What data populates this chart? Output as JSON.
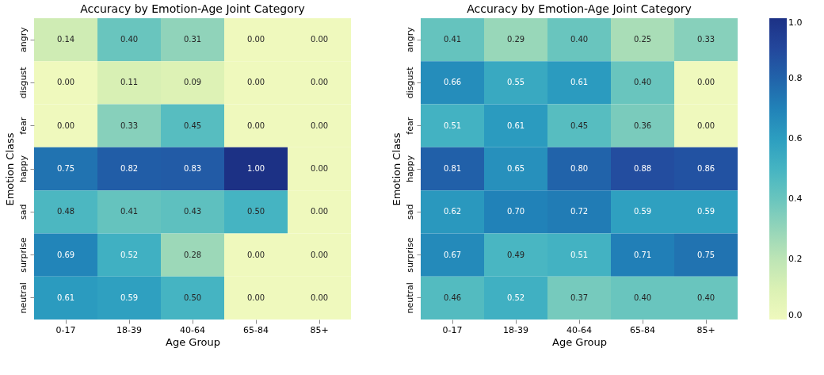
{
  "chart_data": [
    {
      "type": "heatmap",
      "title": "Accuracy by Emotion-Age Joint Category",
      "xlabel": "Age Group",
      "ylabel": "Emotion Class",
      "data_labels": true,
      "categories": [
        "0-17",
        "18-39",
        "40-64",
        "65-84",
        "85+"
      ],
      "y_categories": [
        "angry",
        "disgust",
        "fear",
        "happy",
        "sad",
        "surprise",
        "neutral"
      ],
      "cells": [
        [
          0.14,
          0.4,
          0.31,
          0.0,
          0.0
        ],
        [
          0.0,
          0.11,
          0.09,
          0.0,
          0.0
        ],
        [
          0.0,
          0.33,
          0.45,
          0.0,
          0.0
        ],
        [
          0.75,
          0.82,
          0.83,
          1.0,
          0.0
        ],
        [
          0.48,
          0.41,
          0.43,
          0.5,
          0.0
        ],
        [
          0.69,
          0.52,
          0.28,
          0.0,
          0.0
        ],
        [
          0.61,
          0.59,
          0.5,
          0.0,
          0.0
        ]
      ],
      "cell_labels": [
        [
          "0.14",
          "0.40",
          "0.31",
          "0.00",
          "0.00"
        ],
        [
          "0.00",
          "0.11",
          "0.09",
          "0.00",
          "0.00"
        ],
        [
          "0.00",
          "0.33",
          "0.45",
          "0.00",
          "0.00"
        ],
        [
          "0.75",
          "0.82",
          "0.83",
          "1.00",
          "0.00"
        ],
        [
          "0.48",
          "0.41",
          "0.43",
          "0.50",
          "0.00"
        ],
        [
          "0.69",
          "0.52",
          "0.28",
          "0.00",
          "0.00"
        ],
        [
          "0.61",
          "0.59",
          "0.50",
          "0.00",
          "0.00"
        ]
      ]
    },
    {
      "type": "heatmap",
      "title": "Accuracy by Emotion-Age Joint Category",
      "xlabel": "Age Group",
      "ylabel": "Emotion Class",
      "data_labels": true,
      "categories": [
        "0-17",
        "18-39",
        "40-64",
        "65-84",
        "85+"
      ],
      "y_categories": [
        "angry",
        "disgust",
        "fear",
        "happy",
        "sad",
        "surprise",
        "neutral"
      ],
      "cells": [
        [
          0.41,
          0.29,
          0.4,
          0.25,
          0.33
        ],
        [
          0.66,
          0.55,
          0.61,
          0.4,
          0.0
        ],
        [
          0.51,
          0.61,
          0.45,
          0.36,
          0.0
        ],
        [
          0.81,
          0.65,
          0.8,
          0.88,
          0.86
        ],
        [
          0.62,
          0.7,
          0.72,
          0.59,
          0.59
        ],
        [
          0.67,
          0.49,
          0.51,
          0.71,
          0.75
        ],
        [
          0.46,
          0.52,
          0.37,
          0.4,
          0.4
        ]
      ],
      "cell_labels": [
        [
          "0.41",
          "0.29",
          "0.40",
          "0.25",
          "0.33"
        ],
        [
          "0.66",
          "0.55",
          "0.61",
          "0.40",
          "0.00"
        ],
        [
          "0.51",
          "0.61",
          "0.45",
          "0.36",
          "0.00"
        ],
        [
          "0.81",
          "0.65",
          "0.80",
          "0.88",
          "0.86"
        ],
        [
          "0.62",
          "0.70",
          "0.72",
          "0.59",
          "0.59"
        ],
        [
          "0.67",
          "0.49",
          "0.51",
          "0.71",
          "0.75"
        ],
        [
          "0.46",
          "0.52",
          "0.37",
          "0.40",
          "0.40"
        ]
      ],
      "clim": [
        0,
        1
      ],
      "cticks": [
        {
          "value": 0,
          "label": "0.0"
        },
        {
          "value": 0.2,
          "label": "0.2"
        },
        {
          "value": 0.4,
          "label": "0.4"
        },
        {
          "value": 0.6,
          "label": "0.6"
        },
        {
          "value": 0.8,
          "label": "0.8"
        },
        {
          "value": 1,
          "label": "1.0"
        }
      ]
    }
  ]
}
